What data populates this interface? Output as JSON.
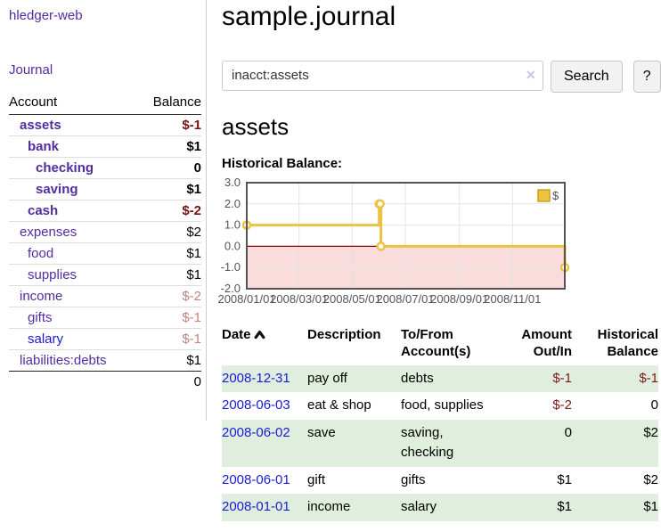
{
  "app": {
    "title": "hledger-web",
    "nav": {
      "journal": "Journal"
    }
  },
  "sidebar": {
    "accounts_table": {
      "headers": {
        "account": "Account",
        "balance": "Balance"
      },
      "rows": [
        {
          "name": "assets",
          "depth": 1,
          "bold": true,
          "balance": "$-1",
          "balance_style": "negative"
        },
        {
          "name": "bank",
          "depth": 2,
          "bold": true,
          "balance": "$1",
          "balance_style": "normal"
        },
        {
          "name": "checking",
          "depth": 3,
          "bold": true,
          "balance": "0",
          "balance_style": "normal"
        },
        {
          "name": "saving",
          "depth": 3,
          "bold": true,
          "balance": "$1",
          "balance_style": "normal"
        },
        {
          "name": "cash",
          "depth": 2,
          "bold": true,
          "balance": "$-2",
          "balance_style": "negative"
        },
        {
          "name": "expenses",
          "depth": 1,
          "bold": false,
          "balance": "$2",
          "balance_style": "normal"
        },
        {
          "name": "food",
          "depth": 2,
          "bold": false,
          "balance": "$1",
          "balance_style": "normal"
        },
        {
          "name": "supplies",
          "depth": 2,
          "bold": false,
          "balance": "$1",
          "balance_style": "normal"
        },
        {
          "name": "income",
          "depth": 1,
          "bold": false,
          "balance": "$-2",
          "balance_style": "negative-dim"
        },
        {
          "name": "gifts",
          "depth": 2,
          "bold": false,
          "balance": "$-1",
          "balance_style": "negative-dim"
        },
        {
          "name": "salary",
          "depth": 2,
          "bold": false,
          "balance": "$-1",
          "balance_style": "negative-dim",
          "link_style": "unvisited"
        },
        {
          "name": "liabilities:debts",
          "depth": 1,
          "bold": false,
          "balance": "$1",
          "balance_style": "normal"
        }
      ],
      "total": "0"
    }
  },
  "header": {
    "title": "sample.journal"
  },
  "search": {
    "value": "inacct:assets",
    "clear_icon": "×",
    "button": "Search",
    "help_button": "?"
  },
  "account_page": {
    "title": "assets",
    "chart_label": "Historical Balance:"
  },
  "chart_data": {
    "type": "line",
    "title": "Historical Balance:",
    "series": [
      {
        "name": "$",
        "color": "#edc240",
        "steps": true,
        "points": [
          [
            "2008-01-01",
            1
          ],
          [
            "2008-06-01",
            2
          ],
          [
            "2008-06-02",
            2
          ],
          [
            "2008-06-03",
            0
          ],
          [
            "2008-12-31",
            -1
          ]
        ]
      }
    ],
    "x_range": [
      "2008-01-01",
      "2008-12-31"
    ],
    "x_ticks": [
      "2008/01/01",
      "2008/03/01",
      "2008/05/01",
      "2008/07/01",
      "2008/09/01",
      "2008/11/01"
    ],
    "y_ticks": [
      "3.0",
      "2.0",
      "1.0",
      "0.0",
      "-1.0",
      "-2.0"
    ],
    "ylim": [
      -2,
      3
    ],
    "grid": true,
    "legend_position": "top-right",
    "negative_region_color": "#fadcdc",
    "zero_line_color": "#8b0000",
    "border_color": "#545454",
    "grid_color": "#e3e3e3",
    "tick_label_color": "#545454"
  },
  "register": {
    "headers": [
      {
        "label": "Date",
        "align": "left",
        "sort": "asc",
        "sort_icon": "chevron-up"
      },
      {
        "label": "Description",
        "align": "left"
      },
      {
        "label": "To/From Account(s)",
        "align": "left"
      },
      {
        "label": "Amount Out/In",
        "align": "right"
      },
      {
        "label": "Historical Balance",
        "align": "right"
      }
    ],
    "rows": [
      {
        "date": "2008-12-31",
        "description": "pay off",
        "accounts": "debts",
        "amount": "$-1",
        "amount_negative": true,
        "balance": "$-1",
        "balance_negative": true,
        "highlight": true
      },
      {
        "date": "2008-06-03",
        "description": "eat & shop",
        "accounts": "food, supplies",
        "amount": "$-2",
        "amount_negative": true,
        "balance": "0",
        "balance_negative": false,
        "highlight": false
      },
      {
        "date": "2008-06-02",
        "description": "save",
        "accounts": "saving, checking",
        "amount": "0",
        "amount_negative": false,
        "balance": "$2",
        "balance_negative": false,
        "highlight": true
      },
      {
        "date": "2008-06-01",
        "description": "gift",
        "accounts": "gifts",
        "amount": "$1",
        "amount_negative": false,
        "balance": "$2",
        "balance_negative": false,
        "highlight": false
      },
      {
        "date": "2008-01-01",
        "description": "income",
        "accounts": "salary",
        "amount": "$1",
        "amount_negative": false,
        "balance": "$1",
        "balance_negative": false,
        "highlight": true
      }
    ]
  }
}
